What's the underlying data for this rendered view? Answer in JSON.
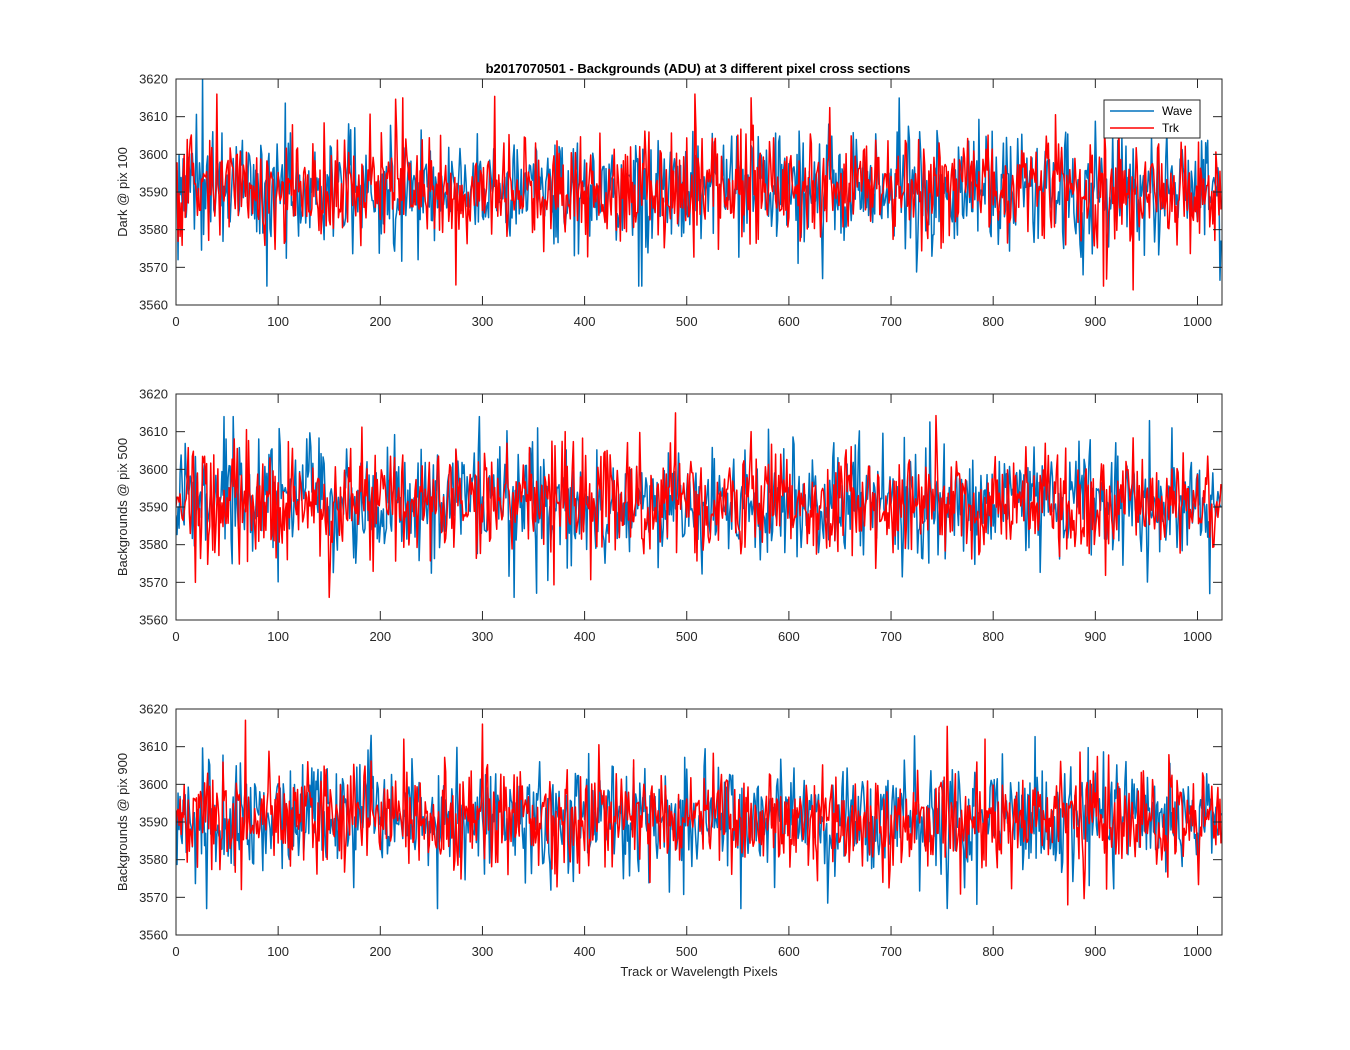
{
  "figure_title": "b2017070501 - Backgrounds (ADU) at 3 different pixel cross sections",
  "colors": {
    "wave": "#0072BD",
    "trk": "#FF0000",
    "axes": "#262626",
    "background": "#FFFFFF"
  },
  "chart_data": [
    {
      "type": "line",
      "ylabel": "Dark @ pix 100",
      "xlabel": "",
      "xlim": [
        0,
        1024
      ],
      "ylim": [
        3560,
        3620
      ],
      "x_ticks": [
        0,
        100,
        200,
        300,
        400,
        500,
        600,
        700,
        800,
        900,
        1000
      ],
      "y_ticks": [
        3560,
        3570,
        3580,
        3590,
        3600,
        3610,
        3620
      ],
      "legend": {
        "entries": [
          "Wave",
          "Trk"
        ],
        "position": "top-right"
      },
      "series": [
        {
          "name": "Wave",
          "n_points": 1024,
          "mean": 3591,
          "noise_std": 7.5,
          "min": 3565,
          "max": 3620,
          "spikes": [
            [
              26,
              3620
            ],
            [
              89,
              3565
            ],
            [
              453,
              3565
            ],
            [
              456,
              3565
            ],
            [
              633,
              3567
            ],
            [
              888,
              3568
            ]
          ]
        },
        {
          "name": "Trk",
          "n_points": 1024,
          "mean": 3591,
          "noise_std": 7,
          "min": 3564,
          "max": 3616,
          "spikes": [
            [
              40,
              3616
            ],
            [
              222,
              3615
            ],
            [
              508,
              3616
            ],
            [
              563,
              3615
            ],
            [
              908,
              3565
            ],
            [
              937,
              3564
            ]
          ]
        }
      ]
    },
    {
      "type": "line",
      "ylabel": "Backgrounds @ pix 500",
      "xlabel": "",
      "xlim": [
        0,
        1024
      ],
      "ylim": [
        3560,
        3620
      ],
      "x_ticks": [
        0,
        100,
        200,
        300,
        400,
        500,
        600,
        700,
        800,
        900,
        1000
      ],
      "y_ticks": [
        3560,
        3570,
        3580,
        3590,
        3600,
        3610,
        3620
      ],
      "series": [
        {
          "name": "Wave",
          "n_points": 1024,
          "mean": 3591,
          "noise_std": 7.5,
          "min": 3566,
          "max": 3614,
          "spikes": [
            [
              47,
              3614
            ],
            [
              56,
              3614
            ],
            [
              297,
              3614
            ],
            [
              331,
              3566
            ],
            [
              975,
              3611
            ],
            [
              1012,
              3567
            ]
          ]
        },
        {
          "name": "Trk",
          "n_points": 1024,
          "mean": 3591,
          "noise_std": 7,
          "min": 3566,
          "max": 3615,
          "spikes": [
            [
              150,
              3566
            ],
            [
              19,
              3570
            ],
            [
              489,
              3615
            ],
            [
              381,
              3610
            ],
            [
              563,
              3610
            ]
          ]
        }
      ]
    },
    {
      "type": "line",
      "ylabel": "Backgrounds @ pix 900",
      "xlabel": "Track or Wavelength Pixels",
      "xlim": [
        0,
        1024
      ],
      "ylim": [
        3560,
        3620
      ],
      "x_ticks": [
        0,
        100,
        200,
        300,
        400,
        500,
        600,
        700,
        800,
        900,
        1000
      ],
      "y_ticks": [
        3560,
        3570,
        3580,
        3590,
        3600,
        3610,
        3620
      ],
      "series": [
        {
          "name": "Wave",
          "n_points": 1024,
          "mean": 3591,
          "noise_std": 7.5,
          "min": 3567,
          "max": 3613,
          "spikes": [
            [
              30,
              3567
            ],
            [
              191,
              3613
            ],
            [
              256,
              3567
            ],
            [
              553,
              3567
            ]
          ]
        },
        {
          "name": "Trk",
          "n_points": 1024,
          "mean": 3591,
          "noise_std": 7,
          "min": 3568,
          "max": 3617,
          "spikes": [
            [
              68,
              3617
            ],
            [
              300,
              3616
            ],
            [
              223,
              3612
            ],
            [
              792,
              3612
            ],
            [
              873,
              3568
            ]
          ]
        }
      ]
    }
  ]
}
